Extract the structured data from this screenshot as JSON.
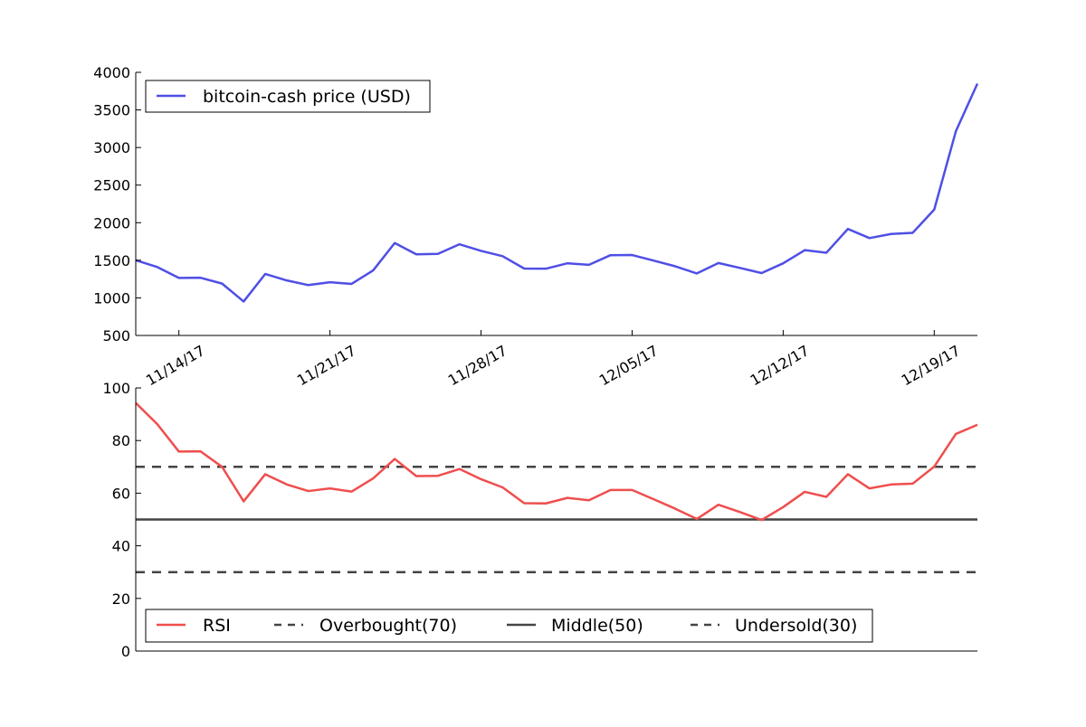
{
  "chart_data": [
    {
      "type": "line",
      "x": [
        "11/12/17",
        "11/13/17",
        "11/14/17",
        "11/15/17",
        "11/16/17",
        "11/17/17",
        "11/18/17",
        "11/19/17",
        "11/20/17",
        "11/21/17",
        "11/22/17",
        "11/23/17",
        "11/24/17",
        "11/25/17",
        "11/26/17",
        "11/27/17",
        "11/28/17",
        "11/29/17",
        "11/30/17",
        "12/01/17",
        "12/02/17",
        "12/03/17",
        "12/04/17",
        "12/05/17",
        "12/06/17",
        "12/07/17",
        "12/08/17",
        "12/09/17",
        "12/10/17",
        "12/11/17",
        "12/12/17",
        "12/13/17",
        "12/14/17",
        "12/15/17",
        "12/16/17",
        "12/17/17",
        "12/18/17",
        "12/19/17",
        "12/20/17",
        "12/21/17"
      ],
      "series": [
        {
          "name": "bitcoin-cash price (USD)",
          "color": "#4f4fe6",
          "values": [
            1500,
            1410,
            1265,
            1268,
            1190,
            952,
            1318,
            1232,
            1170,
            1208,
            1186,
            1365,
            1730,
            1580,
            1585,
            1713,
            1625,
            1555,
            1390,
            1388,
            1460,
            1440,
            1568,
            1570,
            1496,
            1420,
            1325,
            1464,
            1398,
            1330,
            1460,
            1635,
            1600,
            1917,
            1795,
            1850,
            1865,
            2175,
            3215,
            3850
          ]
        }
      ],
      "ylim": [
        500,
        4000
      ],
      "yticks": [
        500,
        1000,
        1500,
        2000,
        2500,
        3000,
        3500,
        4000
      ],
      "xtick_labels": [
        "11/14/17",
        "11/21/17",
        "11/28/17",
        "12/05/17",
        "12/12/17",
        "12/19/17"
      ],
      "xlabel": "",
      "ylabel": "",
      "legend": "top-left",
      "grid": false
    },
    {
      "type": "line",
      "series": [
        {
          "name": "RSI",
          "color": "#ef4e4e",
          "values": [
            94.3,
            86.2,
            75.8,
            75.9,
            70.0,
            56.9,
            67.2,
            63.3,
            60.8,
            61.8,
            60.6,
            65.6,
            73.0,
            66.5,
            66.6,
            69.2,
            65.3,
            62.2,
            56.2,
            56.1,
            58.2,
            57.3,
            61.2,
            61.2,
            57.7,
            54.1,
            50.2,
            55.6,
            52.8,
            49.8,
            54.7,
            60.5,
            58.6,
            67.2,
            61.8,
            63.3,
            63.6,
            70.1,
            82.5,
            86.0
          ]
        },
        {
          "name": "Overbought(70)",
          "value": 70,
          "color": "#444444",
          "style": "dashed"
        },
        {
          "name": "Middle(50)",
          "value": 50,
          "color": "#444444",
          "style": "solid"
        },
        {
          "name": "Undersold(30)",
          "value": 30,
          "color": "#444444",
          "style": "dashed"
        }
      ],
      "ylim": [
        0,
        100
      ],
      "yticks": [
        0,
        20,
        40,
        60,
        80,
        100
      ],
      "xlabel": "",
      "ylabel": "",
      "legend": "bottom-left",
      "grid": false
    }
  ]
}
